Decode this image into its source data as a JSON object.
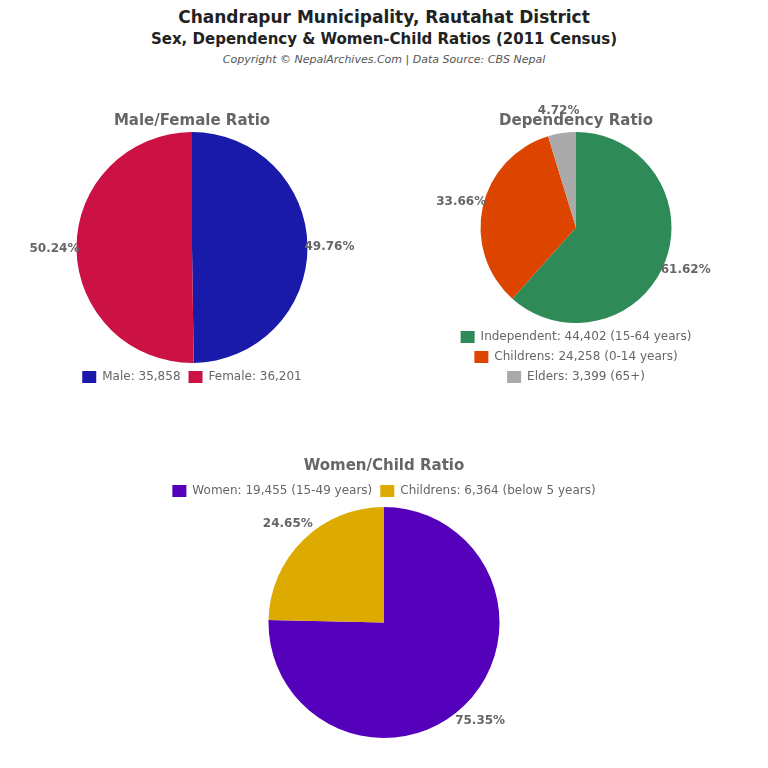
{
  "title": "Chandrapur Municipality, Rautahat District",
  "subtitle": "Sex, Dependency & Women-Child Ratios (2011 Census)",
  "annotations": [
    "Copyright © NepalArchives.Com | Data Source: CBS Nepal"
  ],
  "chart_data": [
    {
      "type": "pie",
      "title": "Male/Female Ratio",
      "categories": [
        "Male: 35,858",
        "Female: 36,201"
      ],
      "values": [
        49.76,
        50.24
      ],
      "value_labels": [
        "49.76%",
        "50.24%"
      ],
      "colors": [
        "#1a1aaa",
        "#cc1144"
      ],
      "data_labels": true,
      "legend": "bottom"
    },
    {
      "type": "pie",
      "title": "Dependency Ratio",
      "categories": [
        "Independent: 44,402 (15-64 years)",
        "Childrens: 24,258 (0-14 years)",
        "Elders: 3,399 (65+)"
      ],
      "values": [
        61.62,
        33.66,
        4.72
      ],
      "value_labels": [
        "61.62%",
        "33.66%",
        "4.72%"
      ],
      "colors": [
        "#2e8b57",
        "#dd4400",
        "#aaaaaa"
      ],
      "data_labels": true,
      "legend": "bottom"
    },
    {
      "type": "pie",
      "title": "Women/Child Ratio",
      "categories": [
        "Women: 19,455 (15-49 years)",
        "Childrens: 6,364 (below 5 years)"
      ],
      "values": [
        75.35,
        24.65
      ],
      "value_labels": [
        "75.35%",
        "24.65%"
      ],
      "colors": [
        "#5500bb",
        "#ddaa00"
      ],
      "data_labels": true,
      "legend": "top"
    }
  ]
}
